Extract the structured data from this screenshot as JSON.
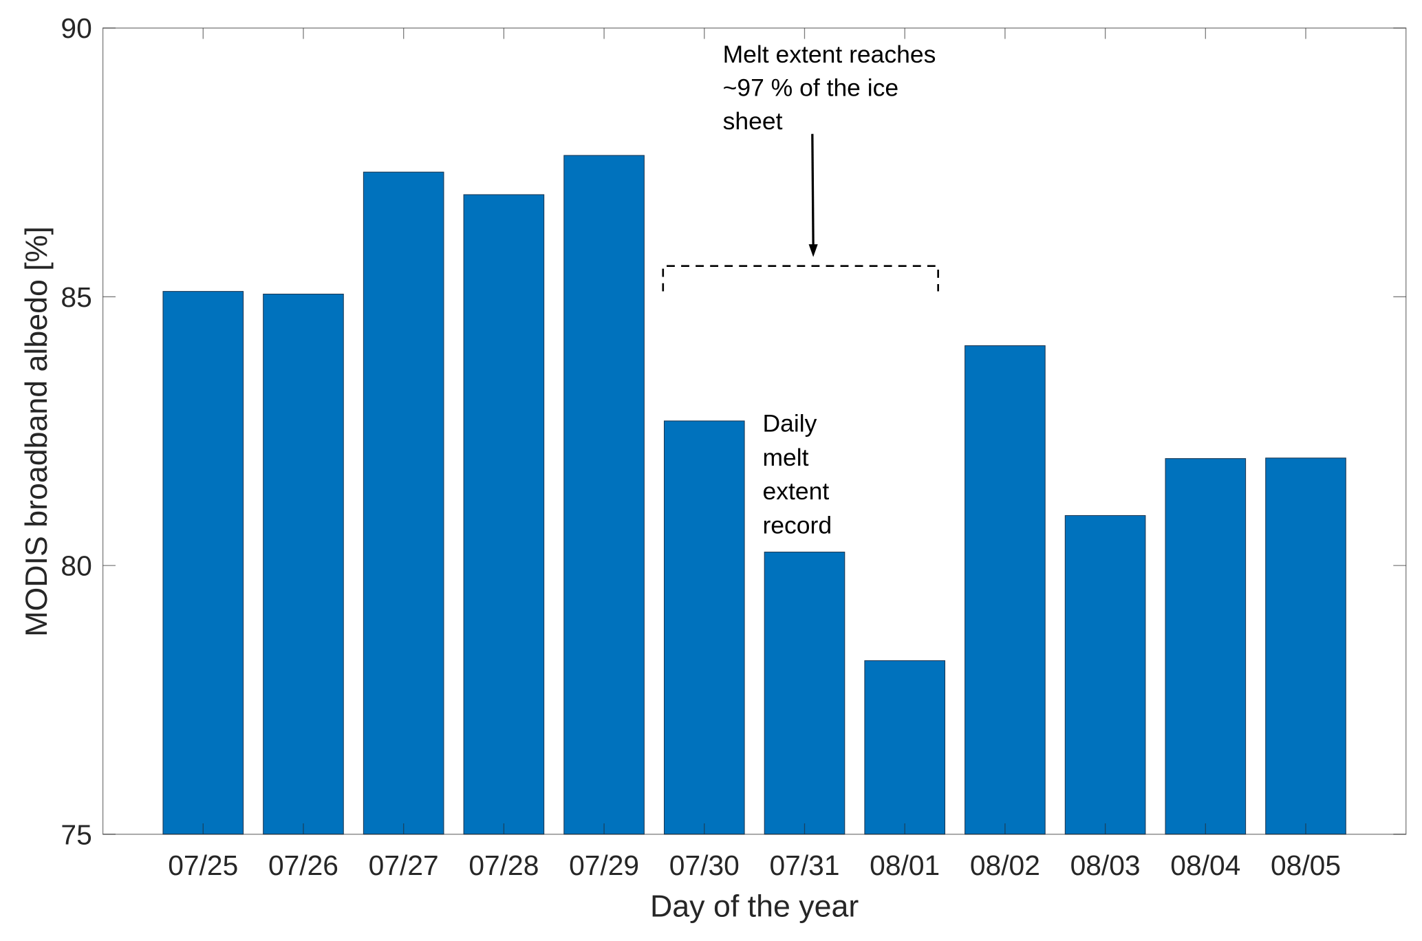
{
  "chart_data": {
    "type": "bar",
    "title": "",
    "xlabel": "Day of the year",
    "ylabel": "MODIS broadband albedo [%]",
    "categories": [
      "07/25",
      "07/26",
      "07/27",
      "07/28",
      "07/29",
      "07/30",
      "07/31",
      "08/01",
      "08/02",
      "08/03",
      "08/04",
      "08/05"
    ],
    "values": [
      85.1,
      85.05,
      87.32,
      86.9,
      87.63,
      82.69,
      80.25,
      78.23,
      84.09,
      80.93,
      81.99,
      82.0
    ],
    "ylim": [
      75,
      90
    ],
    "yticks": [
      75,
      80,
      85,
      90
    ],
    "grid": false,
    "bar_color": "#0072BD",
    "annotations": [
      {
        "lines": [
          "Melt extent reaches",
          "~97 % of the ice",
          "sheet"
        ],
        "arrow": true,
        "bracket_from": "07/30",
        "bracket_to": "08/01"
      },
      {
        "lines": [
          "Daily",
          "melt",
          "extent",
          "record"
        ]
      }
    ]
  }
}
